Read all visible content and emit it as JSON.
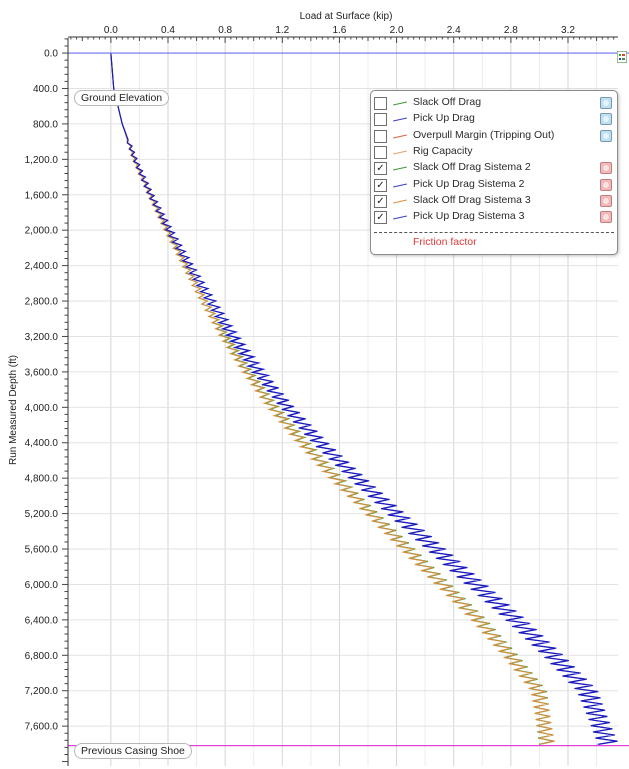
{
  "chart_data": {
    "type": "line",
    "xlabel": "Load at Surface (kip)",
    "ylabel": "Run Measured Depth (ft)",
    "x_axis_position": "top",
    "y_axis_inverted": true,
    "xlim": [
      -0.3,
      3.55
    ],
    "ylim": [
      -170,
      8050
    ],
    "x_ticks": [
      "0.0",
      "0.4",
      "0.8",
      "1.2",
      "1.6",
      "2.0",
      "2.4",
      "2.8",
      "3.2"
    ],
    "y_ticks": [
      "0.0",
      "400.0",
      "800.0",
      "1,200.0",
      "1,600.0",
      "2,000.0",
      "2,400.0",
      "2,800.0",
      "3,200.0",
      "3,600.0",
      "4,000.0",
      "4,400.0",
      "4,800.0",
      "5,200.0",
      "5,600.0",
      "6,000.0",
      "6,400.0",
      "6,800.0",
      "7,200.0",
      "7,600.0"
    ],
    "grid": true,
    "legend_position": "top-right",
    "reference_lines": [
      {
        "label": "Ground Elevation",
        "depth": 0,
        "color": "#6d6df2"
      },
      {
        "label": "Previous Casing Shoe",
        "depth": 7820,
        "color": "#e040e0"
      }
    ],
    "legend": {
      "items": [
        {
          "label": "Slack Off Drag",
          "color": "#3a9a3a",
          "checked": false,
          "icon": "blue"
        },
        {
          "label": "Pick Up Drag",
          "color": "#3a3ad0",
          "checked": false,
          "icon": "blue"
        },
        {
          "label": "Overpull Margin (Tripping Out)",
          "color": "#e0603a",
          "checked": false,
          "icon": "blue"
        },
        {
          "label": "Rig Capacity",
          "color": "#e0a070",
          "checked": false,
          "icon": "none"
        },
        {
          "label": "Slack Off Drag Sistema 2",
          "color": "#3a9a3a",
          "checked": true,
          "icon": "red"
        },
        {
          "label": "Pick Up Drag Sistema 2",
          "color": "#3a3ad0",
          "checked": true,
          "icon": "red"
        },
        {
          "label": "Slack Off Drag Sistema 3",
          "color": "#e08a3a",
          "checked": true,
          "icon": "red"
        },
        {
          "label": "Pick Up Drag Sistema 3",
          "color": "#3a3ad0",
          "checked": true,
          "icon": "red"
        }
      ],
      "footer": "Friction factor",
      "checkmark": "✓"
    },
    "series": [
      {
        "name": "Slack Off Drag Sistema 2",
        "color": "#3f9a3f",
        "x": [
          0,
          0.02,
          0.08,
          0.16,
          0.27,
          0.39,
          0.52,
          0.65,
          0.8,
          0.96,
          1.14,
          1.35,
          1.58,
          1.83,
          2.08,
          2.33,
          2.58,
          2.8,
          3.0,
          3.05
        ],
        "y": [
          0,
          400,
          800,
          1200,
          1600,
          2000,
          2400,
          2800,
          3200,
          3600,
          4000,
          4400,
          4800,
          5200,
          5600,
          6000,
          6400,
          6800,
          7200,
          7820
        ]
      },
      {
        "name": "Slack Off Drag Sistema 3",
        "color": "#d89040",
        "x": [
          0,
          0.02,
          0.08,
          0.16,
          0.27,
          0.39,
          0.52,
          0.65,
          0.79,
          0.95,
          1.13,
          1.34,
          1.57,
          1.82,
          2.07,
          2.32,
          2.57,
          2.79,
          2.99,
          3.06
        ],
        "y": [
          0,
          400,
          800,
          1200,
          1600,
          2000,
          2400,
          2800,
          3200,
          3600,
          4000,
          4400,
          4800,
          5200,
          5600,
          6000,
          6400,
          6800,
          7200,
          7820
        ]
      },
      {
        "name": "Pick Up Drag Sistema 2",
        "color": "#2a2ad6",
        "x": [
          0,
          0.02,
          0.08,
          0.17,
          0.28,
          0.41,
          0.55,
          0.7,
          0.86,
          1.04,
          1.24,
          1.47,
          1.73,
          2.0,
          2.28,
          2.56,
          2.84,
          3.1,
          3.34,
          3.48
        ],
        "y": [
          0,
          400,
          800,
          1200,
          1600,
          2000,
          2400,
          2800,
          3200,
          3600,
          4000,
          4400,
          4800,
          5200,
          5600,
          6000,
          6400,
          6800,
          7200,
          7820
        ]
      },
      {
        "name": "Pick Up Drag Sistema 3",
        "color": "#1a1ab8",
        "x": [
          0,
          0.02,
          0.08,
          0.17,
          0.28,
          0.41,
          0.55,
          0.7,
          0.85,
          1.03,
          1.23,
          1.46,
          1.72,
          1.99,
          2.27,
          2.55,
          2.83,
          3.09,
          3.33,
          3.49
        ],
        "y": [
          0,
          400,
          800,
          1200,
          1600,
          2000,
          2400,
          2800,
          3200,
          3600,
          4000,
          4400,
          4800,
          5200,
          5600,
          6000,
          6400,
          6800,
          7200,
          7820
        ]
      }
    ]
  }
}
